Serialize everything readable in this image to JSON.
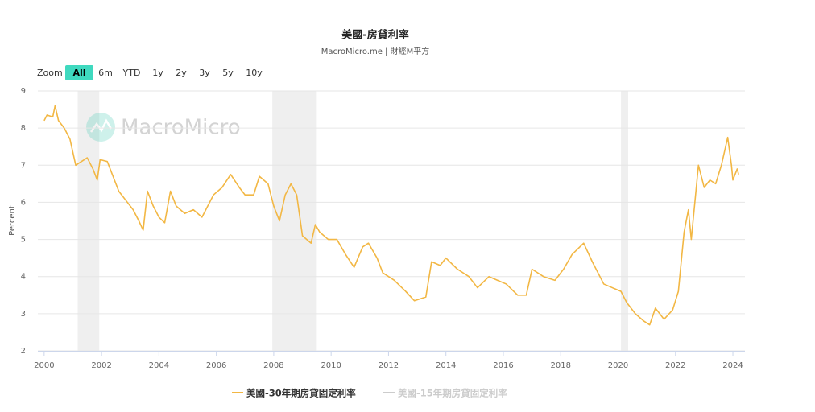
{
  "chart_data": {
    "type": "line",
    "title": "美國-房貸利率",
    "subtitle": "MacroMicro.me | 財經M平方",
    "watermark": "MacroMicro",
    "y_label": "Percent",
    "range_selector": {
      "label": "Zoom",
      "buttons": [
        "All",
        "6m",
        "YTD",
        "1y",
        "2y",
        "3y",
        "5y",
        "10y"
      ],
      "selected": 0
    },
    "xlim": [
      1999.78,
      2024.42
    ],
    "xticks": [
      2000,
      2002,
      2004,
      2006,
      2008,
      2010,
      2012,
      2014,
      2016,
      2018,
      2020,
      2022,
      2024
    ],
    "ylim": [
      2,
      9
    ],
    "yticks": [
      2,
      3,
      4,
      5,
      6,
      7,
      8,
      9
    ],
    "grid": true,
    "shaded_ranges": [
      [
        2001.17,
        2001.92
      ],
      [
        2007.95,
        2009.5
      ],
      [
        2020.1,
        2020.35
      ]
    ],
    "shade_color": "#efefef",
    "x": [
      2000.0,
      2000.1,
      2000.3,
      2000.38,
      2000.5,
      2000.7,
      2000.9,
      2001.1,
      2001.3,
      2001.5,
      2001.7,
      2001.85,
      2001.95,
      2002.2,
      2002.4,
      2002.6,
      2002.9,
      2003.1,
      2003.3,
      2003.45,
      2003.6,
      2003.8,
      2004.0,
      2004.2,
      2004.4,
      2004.6,
      2004.9,
      2005.2,
      2005.5,
      2005.7,
      2005.9,
      2006.2,
      2006.5,
      2006.8,
      2007.0,
      2007.3,
      2007.5,
      2007.8,
      2008.0,
      2008.2,
      2008.4,
      2008.6,
      2008.8,
      2009.0,
      2009.3,
      2009.45,
      2009.6,
      2009.9,
      2010.2,
      2010.5,
      2010.8,
      2011.1,
      2011.3,
      2011.6,
      2011.8,
      2012.2,
      2012.6,
      2012.9,
      2013.3,
      2013.5,
      2013.8,
      2014.0,
      2014.4,
      2014.8,
      2015.1,
      2015.5,
      2015.8,
      2016.1,
      2016.5,
      2016.8,
      2017.0,
      2017.4,
      2017.8,
      2018.1,
      2018.4,
      2018.8,
      2019.1,
      2019.5,
      2019.8,
      2020.1,
      2020.3,
      2020.6,
      2020.9,
      2021.1,
      2021.3,
      2021.6,
      2021.9,
      2022.1,
      2022.3,
      2022.45,
      2022.55,
      2022.8,
      2023.0,
      2023.2,
      2023.4,
      2023.6,
      2023.82,
      2023.95,
      2024.0,
      2024.15,
      2024.2
    ],
    "series": [
      {
        "name": "美國-30年期房貸固定利率",
        "color": "#f2b744",
        "visible": true,
        "values": [
          8.2,
          8.35,
          8.3,
          8.6,
          8.2,
          8.0,
          7.7,
          7.0,
          7.1,
          7.2,
          6.9,
          6.6,
          7.15,
          7.1,
          6.7,
          6.3,
          6.0,
          5.8,
          5.5,
          5.25,
          6.3,
          5.9,
          5.6,
          5.45,
          6.3,
          5.9,
          5.7,
          5.8,
          5.6,
          5.9,
          6.2,
          6.4,
          6.75,
          6.4,
          6.2,
          6.2,
          6.7,
          6.5,
          5.9,
          5.5,
          6.2,
          6.5,
          6.2,
          5.1,
          4.9,
          5.4,
          5.2,
          5.0,
          5.0,
          4.6,
          4.25,
          4.8,
          4.9,
          4.5,
          4.1,
          3.9,
          3.6,
          3.35,
          3.45,
          4.4,
          4.3,
          4.5,
          4.2,
          4.0,
          3.7,
          4.0,
          3.9,
          3.8,
          3.5,
          3.5,
          4.2,
          4.0,
          3.9,
          4.2,
          4.6,
          4.9,
          4.4,
          3.8,
          3.7,
          3.6,
          3.3,
          3.0,
          2.8,
          2.7,
          3.15,
          2.85,
          3.1,
          3.6,
          5.2,
          5.8,
          5.0,
          7.0,
          6.4,
          6.6,
          6.5,
          7.0,
          7.75,
          7.0,
          6.6,
          6.9,
          6.75
        ]
      },
      {
        "name": "美國-15年期房貸固定利率",
        "color": "#cccccc",
        "visible": false
      }
    ]
  }
}
